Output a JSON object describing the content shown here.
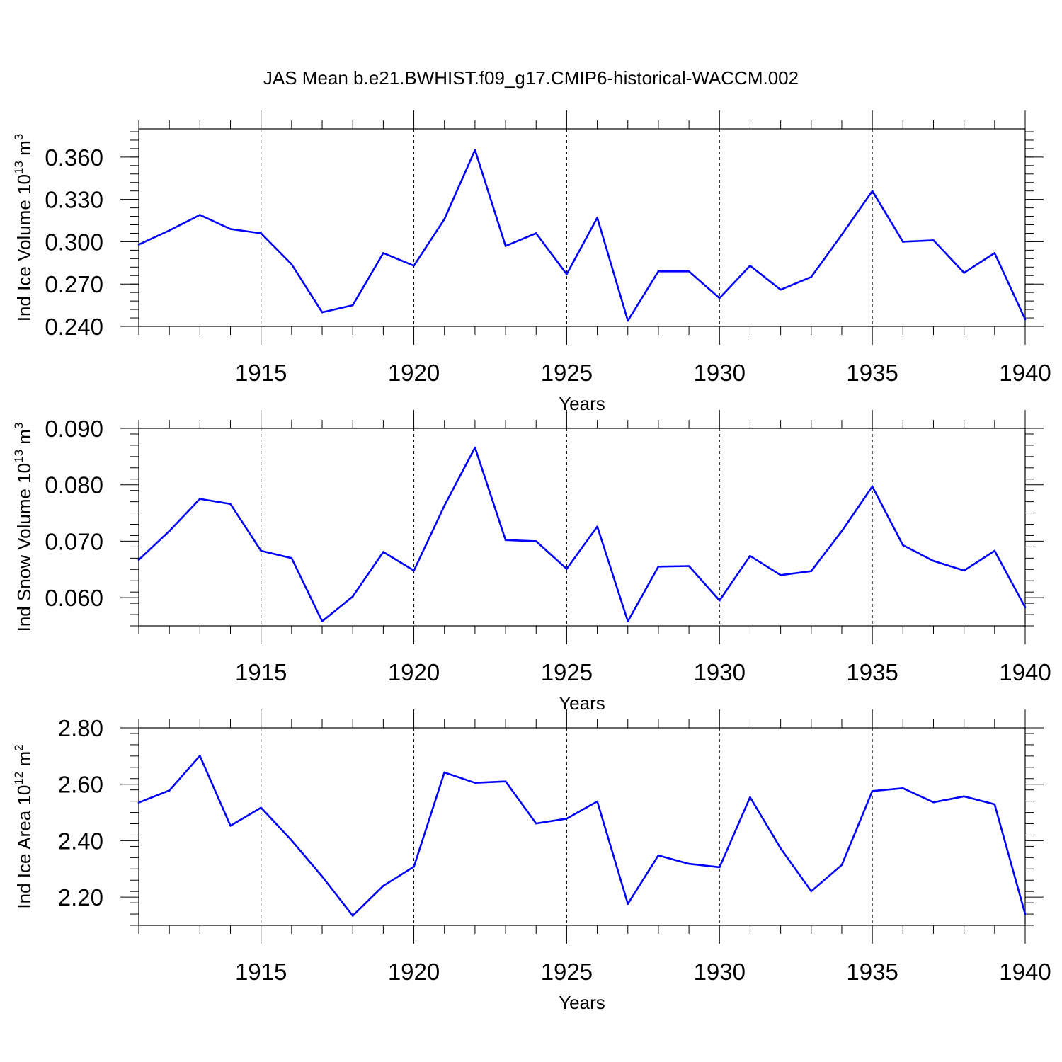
{
  "title": "JAS Mean b.e21.BWHIST.f09_g17.CMIP6-historical-WACCM.002",
  "line_color": "#0000ff",
  "chart_data": [
    {
      "type": "line",
      "ylabel": {
        "main": "Ind Ice Volume 10",
        "sup": "13",
        "unit": " m",
        "unit_sup": "3"
      },
      "xlabel": "Years",
      "xlim": [
        1911,
        1940
      ],
      "ylim": [
        0.24,
        0.38
      ],
      "y_major_ticks": [
        0.24,
        0.27,
        0.3,
        0.33,
        0.36
      ],
      "y_tick_labels": [
        "0.240",
        "0.270",
        "0.300",
        "0.330",
        "0.360"
      ],
      "y_minor_step": 0.006,
      "x_major_ticks": [
        1915,
        1920,
        1925,
        1930,
        1935,
        1940
      ],
      "x_tick_labels": [
        "1915",
        "1920",
        "1925",
        "1930",
        "1935",
        "1940"
      ],
      "x": [
        1911,
        1912,
        1913,
        1914,
        1915,
        1916,
        1917,
        1918,
        1919,
        1920,
        1921,
        1922,
        1923,
        1924,
        1925,
        1926,
        1927,
        1928,
        1929,
        1930,
        1931,
        1932,
        1933,
        1934,
        1935,
        1936,
        1937,
        1938,
        1939,
        1940
      ],
      "values": [
        0.298,
        0.308,
        0.319,
        0.309,
        0.306,
        0.284,
        0.25,
        0.255,
        0.292,
        0.283,
        0.316,
        0.365,
        0.297,
        0.306,
        0.277,
        0.317,
        0.244,
        0.279,
        0.279,
        0.26,
        0.283,
        0.266,
        0.275,
        0.305,
        0.336,
        0.3,
        0.301,
        0.278,
        0.292,
        0.245
      ]
    },
    {
      "type": "line",
      "ylabel": {
        "main": "Ind Snow Volume 10",
        "sup": "13",
        "unit": " m",
        "unit_sup": "3"
      },
      "xlabel": "Years",
      "xlim": [
        1911,
        1940
      ],
      "ylim": [
        0.055,
        0.09
      ],
      "y_major_ticks": [
        0.06,
        0.07,
        0.08,
        0.09
      ],
      "y_tick_labels": [
        "0.060",
        "0.070",
        "0.080",
        "0.090"
      ],
      "y_minor_step": 0.002,
      "x_major_ticks": [
        1915,
        1920,
        1925,
        1930,
        1935,
        1940
      ],
      "x_tick_labels": [
        "1915",
        "1920",
        "1925",
        "1930",
        "1935",
        "1940"
      ],
      "x": [
        1911,
        1912,
        1913,
        1914,
        1915,
        1916,
        1917,
        1918,
        1919,
        1920,
        1921,
        1922,
        1923,
        1924,
        1925,
        1926,
        1927,
        1928,
        1929,
        1930,
        1931,
        1932,
        1933,
        1934,
        1935,
        1936,
        1937,
        1938,
        1939,
        1940
      ],
      "values": [
        0.0667,
        0.0718,
        0.0775,
        0.0766,
        0.0683,
        0.067,
        0.0558,
        0.0602,
        0.0681,
        0.0648,
        0.0763,
        0.0866,
        0.0702,
        0.07,
        0.0651,
        0.0726,
        0.0558,
        0.0655,
        0.0656,
        0.0595,
        0.0674,
        0.064,
        0.0647,
        0.0718,
        0.0797,
        0.0693,
        0.0665,
        0.0648,
        0.0683,
        0.0583
      ]
    },
    {
      "type": "line",
      "ylabel": {
        "main": "Ind Ice Area 10",
        "sup": "12",
        "unit": " m",
        "unit_sup": "2"
      },
      "xlabel": "Years",
      "xlim": [
        1911,
        1940
      ],
      "ylim": [
        2.1,
        2.8
      ],
      "y_major_ticks": [
        2.2,
        2.4,
        2.6,
        2.8
      ],
      "y_tick_labels": [
        "2.20",
        "2.40",
        "2.60",
        "2.80"
      ],
      "y_minor_step": 0.04,
      "x_major_ticks": [
        1915,
        1920,
        1925,
        1930,
        1935,
        1940
      ],
      "x_tick_labels": [
        "1915",
        "1920",
        "1925",
        "1930",
        "1935",
        "1940"
      ],
      "x": [
        1911,
        1912,
        1913,
        1914,
        1915,
        1916,
        1917,
        1918,
        1919,
        1920,
        1921,
        1922,
        1923,
        1924,
        1925,
        1926,
        1927,
        1928,
        1929,
        1930,
        1931,
        1932,
        1933,
        1934,
        1935,
        1936,
        1937,
        1938,
        1939,
        1940
      ],
      "values": [
        2.535,
        2.578,
        2.701,
        2.453,
        2.517,
        2.401,
        2.273,
        2.134,
        2.24,
        2.308,
        2.642,
        2.605,
        2.61,
        2.461,
        2.478,
        2.539,
        2.176,
        2.348,
        2.318,
        2.306,
        2.554,
        2.373,
        2.221,
        2.314,
        2.576,
        2.586,
        2.536,
        2.557,
        2.529,
        2.14
      ]
    }
  ]
}
